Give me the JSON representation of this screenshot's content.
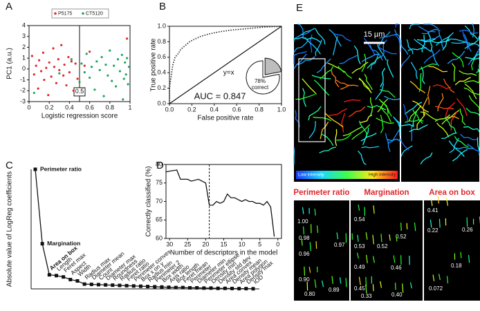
{
  "chart_data": [
    {
      "type": "scatter",
      "panel": "A",
      "xlabel": "Logistic regression score",
      "ylabel": "PC1 (a.u.)",
      "xlim": [
        0,
        1
      ],
      "ylim": [
        -3,
        4
      ],
      "xticks": [
        0,
        0.2,
        0.4,
        0.6,
        0.8,
        1
      ],
      "yticks": [
        -3,
        -2,
        -1,
        0,
        1,
        2,
        3,
        4
      ],
      "threshold": 0.5,
      "threshold_label": "0.5",
      "legend": "top",
      "series": [
        {
          "name": "P5175",
          "color": "#e0262b",
          "x": [
            0.03,
            0.05,
            0.07,
            0.09,
            0.1,
            0.12,
            0.14,
            0.15,
            0.17,
            0.19,
            0.2,
            0.22,
            0.24,
            0.25,
            0.27,
            0.29,
            0.3,
            0.32,
            0.34,
            0.35,
            0.37,
            0.39,
            0.4,
            0.42,
            0.44,
            0.46,
            0.48,
            0.55,
            0.6,
            0.97
          ],
          "values": [
            1.2,
            -0.5,
            0.3,
            -1.8,
            0.8,
            -0.2,
            1.5,
            -1,
            0.1,
            -2.4,
            0.6,
            -0.7,
            1.9,
            0.2,
            -1.3,
            0.9,
            -0.1,
            2.2,
            -0.6,
            0.4,
            -1.5,
            1.1,
            -0.3,
            0.7,
            -2,
            0.5,
            -0.9,
            0.3,
            1.6,
            2.8
          ]
        },
        {
          "name": "CT5120",
          "color": "#1fa35a",
          "x": [
            0.05,
            0.3,
            0.42,
            0.5,
            0.52,
            0.55,
            0.57,
            0.6,
            0.62,
            0.65,
            0.67,
            0.7,
            0.72,
            0.74,
            0.76,
            0.78,
            0.8,
            0.82,
            0.84,
            0.86,
            0.88,
            0.9,
            0.92,
            0.93,
            0.95,
            0.96,
            0.97,
            0.98,
            0.99,
            0.94
          ],
          "values": [
            -2.2,
            -0.4,
            0.9,
            -1.2,
            0.5,
            -0.3,
            1.4,
            -0.8,
            0.2,
            -1.9,
            0.7,
            -0.1,
            1.1,
            -2.5,
            0.4,
            -0.6,
            1.7,
            -1.1,
            0.3,
            -1.6,
            0.9,
            -0.2,
            1.3,
            -2.8,
            0.6,
            -0.5,
            1.0,
            -1.4,
            0.2,
            -0.9
          ]
        }
      ]
    },
    {
      "type": "line",
      "panel": "B",
      "xlabel": "False positive rate",
      "ylabel": "True positive rate",
      "xlim": [
        0,
        1
      ],
      "ylim": [
        0,
        1
      ],
      "xticks": [
        {
          "value": 0,
          "label": "0.0"
        },
        0.2,
        0.4,
        0.6,
        0.8,
        {
          "value": 1,
          "label": "1.0"
        }
      ],
      "yticks": [
        {
          "value": 0,
          "label": "0.0"
        },
        0.2,
        0.4,
        0.6,
        0.8,
        {
          "value": 1,
          "label": "1.0"
        }
      ],
      "x": [
        0,
        0,
        0.01,
        0.02,
        0.03,
        0.05,
        0.08,
        0.1,
        0.14,
        0.18,
        0.22,
        0.28,
        0.35,
        0.45,
        0.55,
        0.7,
        0.85,
        1
      ],
      "values": [
        0,
        0.2,
        0.3,
        0.4,
        0.5,
        0.6,
        0.65,
        0.7,
        0.75,
        0.8,
        0.83,
        0.87,
        0.9,
        0.93,
        0.95,
        0.97,
        0.99,
        1
      ],
      "color": "#222",
      "dotted": true,
      "reference_label": "y=x",
      "annotation": "AUC = 0.847"
    },
    {
      "type": "pie",
      "panel": "B",
      "values": [
        78,
        22
      ],
      "colors": [
        "#ffffff",
        "#bdbdbd"
      ],
      "annotation": "78%",
      "annotation2": "correct"
    },
    {
      "type": "line",
      "panel": "C",
      "ylabel": "Absolute value of LogReg coefficients",
      "ylim": [
        0,
        45
      ],
      "highlighted_indices": [
        0,
        1,
        2
      ],
      "highlight_color": "#e0262b",
      "color": "#111",
      "categories": [
        "Perimeter ratio",
        "Margination",
        "Area on box",
        "Length",
        "Feret max",
        "Aspect",
        "Width",
        "Radius max",
        "Diameter mean",
        "Count",
        "Diameter max",
        "Roundness",
        "Radius ratio",
        "Feret ratio",
        "Perimeter convex",
        "Box x on y",
        "Radius min",
        "Perimeter 2",
        "Box width",
        "Axis ratio",
        "Box length",
        "Feret mean",
        "Perimeter",
        "Diameter min",
        "Perimeter ellipse",
        "Density min",
        "Density std dev",
        "Area convex",
        "Density mean",
        "Area polygon",
        "Density max",
        "IOD"
      ],
      "values": [
        45,
        17,
        5.3,
        5,
        4.5,
        3.5,
        3,
        1.8,
        1.7,
        1.6,
        1.5,
        1.4,
        1.3,
        1.2,
        1.1,
        1.0,
        0.9,
        0.8,
        0.7,
        0.6,
        0.5,
        0.5,
        0.4,
        0.4,
        0.3,
        0.3,
        0.2,
        0.2,
        0.15,
        0.1,
        0.1,
        0.05
      ]
    },
    {
      "type": "line",
      "panel": "D",
      "xlabel": "Number of descriptors in the model",
      "ylabel": "Correctly classified (%)",
      "xlim": [
        31,
        -1
      ],
      "ylim": [
        60,
        80
      ],
      "xticks": [
        30,
        25,
        20,
        15,
        10,
        5,
        0
      ],
      "yticks": [
        60,
        65,
        70,
        75,
        80
      ],
      "threshold": 19,
      "color": "#111",
      "x": [
        31,
        30,
        28,
        27,
        25,
        24,
        22,
        21,
        20,
        19,
        18,
        17,
        16,
        15,
        14,
        13,
        12,
        11,
        10,
        9,
        8,
        7,
        6,
        5,
        4,
        3,
        2,
        1
      ],
      "values": [
        78,
        78.2,
        78.5,
        76,
        76,
        75.5,
        76,
        75.5,
        75,
        69,
        69,
        70,
        69.5,
        70,
        72,
        71,
        71,
        70.5,
        70,
        70.5,
        70,
        70,
        69.5,
        69.5,
        69,
        70,
        68.5,
        60.5
      ]
    }
  ],
  "figure_e": {
    "panel": "E",
    "scale_bar": "15 µm",
    "colorbar_low": "Low intensity",
    "colorbar_high": "High intensity",
    "panels": [
      {
        "title": "Perimeter ratio",
        "labels": [
          "1.00",
          "0.98",
          "0.97",
          "0.96",
          "0.90",
          "0.89",
          "0.80"
        ]
      },
      {
        "title": "Margination",
        "labels": [
          "0.54",
          "0.52",
          "0.53",
          "0.52",
          "0.49",
          "0.46",
          "0.45",
          "0.40",
          "0.33"
        ]
      },
      {
        "title": "Area on box",
        "labels": [
          "0.41",
          "0.22",
          "0.26",
          "0.18",
          "0.072"
        ]
      }
    ]
  }
}
